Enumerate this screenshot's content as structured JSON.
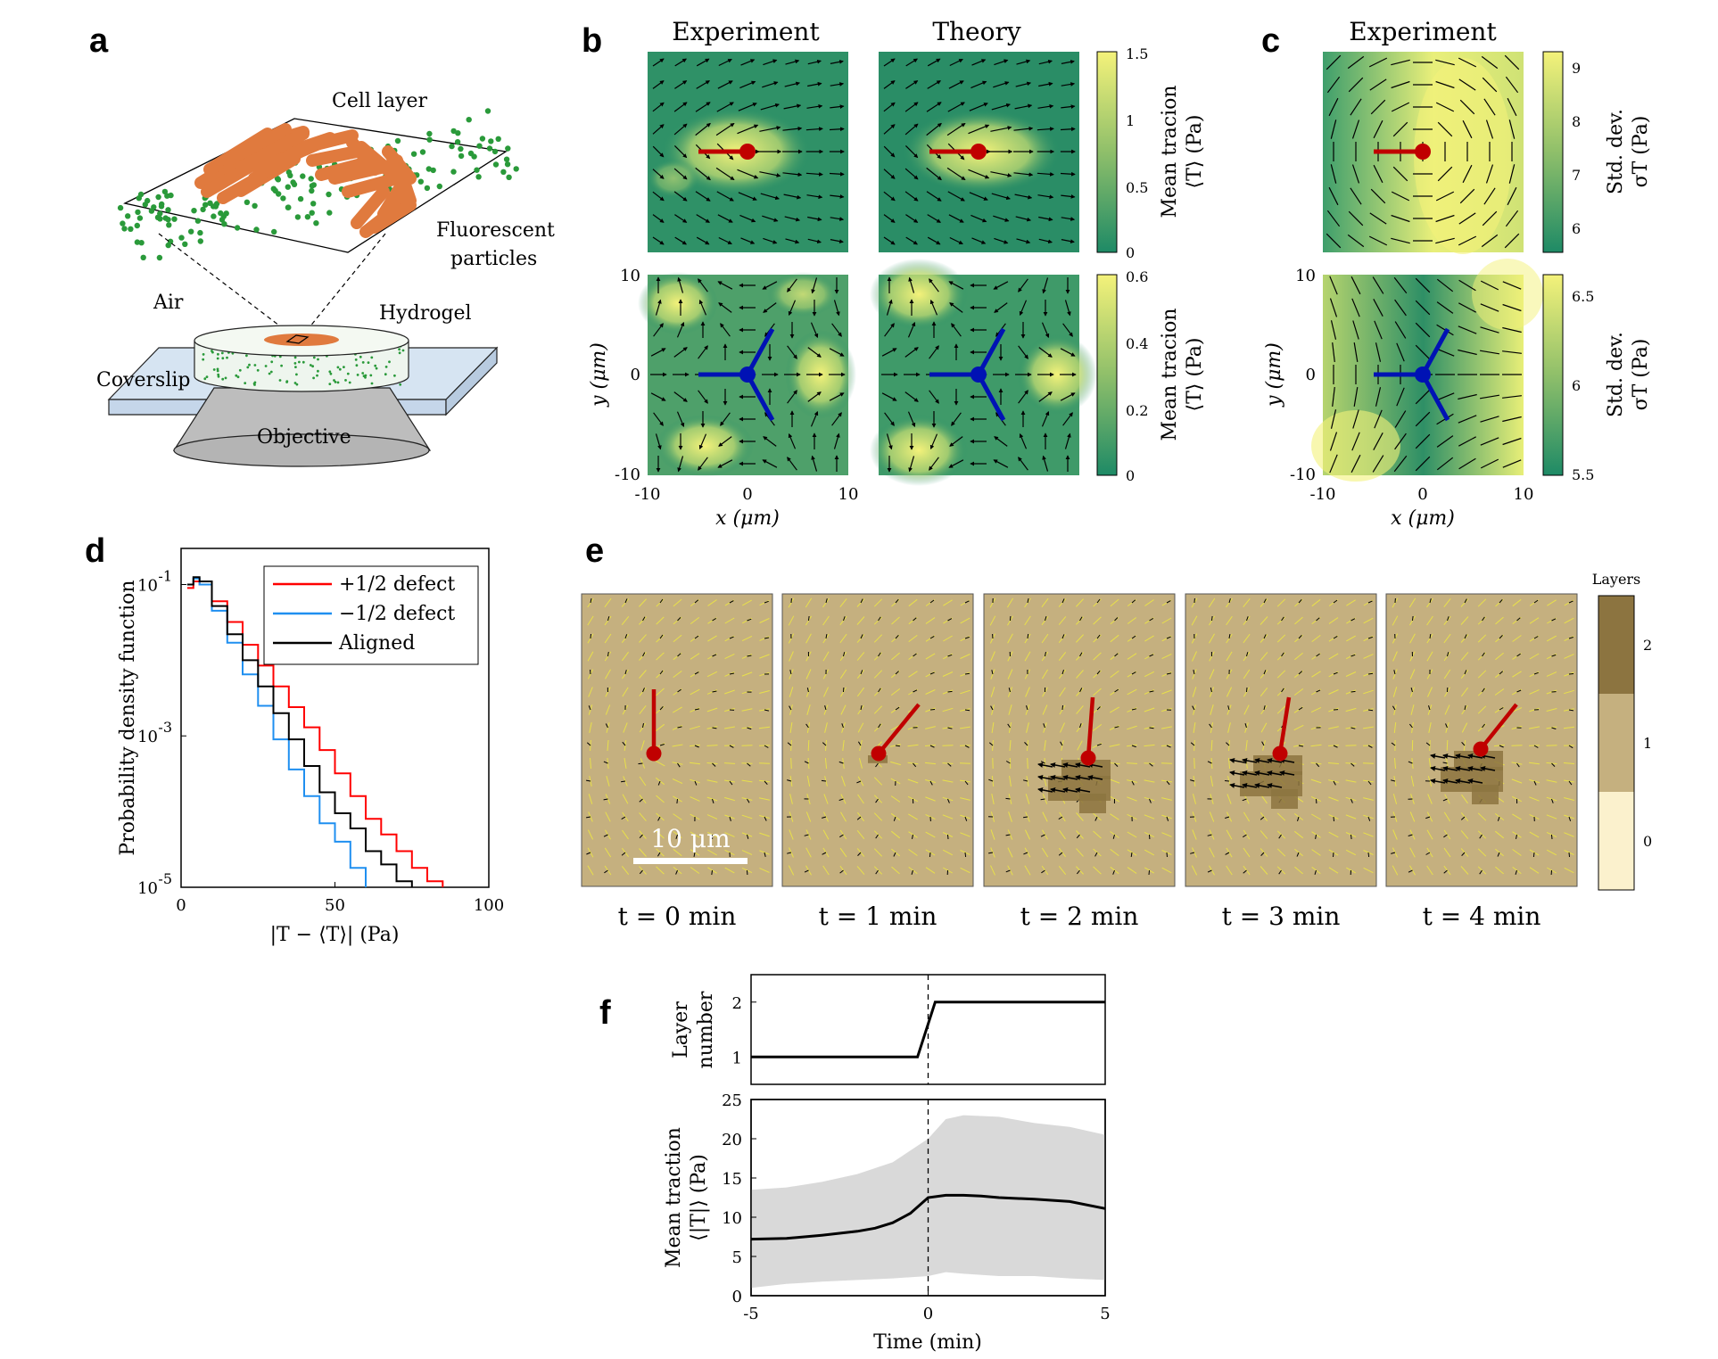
{
  "colors": {
    "map_low": "#1e8a66",
    "map_high": "#f4f27a",
    "defect_plus": "#c00000",
    "defect_minus": "#0012b4",
    "brown_bg": "#c5b07f",
    "layer2": "#8c7440",
    "layer1": "#c5b07f",
    "layer0": "#fbf1cd",
    "pdf_plus": "#ff0000",
    "pdf_minus": "#1f8ff0",
    "pdf_aligned": "#000000",
    "cell_orange": "#e07a3e",
    "particle_green": "#2a9a3a",
    "band_gray": "#d9d9d9"
  },
  "panel_labels": {
    "a": "a",
    "b": "b",
    "c": "c",
    "d": "d",
    "e": "e",
    "f": "f"
  },
  "panel_a": {
    "cell_layer": "Cell layer",
    "fluorescent_1": "Fluorescent",
    "fluorescent_2": "particles",
    "air": "Air",
    "hydrogel": "Hydrogel",
    "coverslip": "Coverslip",
    "objective": "Objective",
    "icons": [
      "cell-icon",
      "particle-icon",
      "objective-icon"
    ]
  },
  "panel_b": {
    "title_exp": "Experiment",
    "title_theory": "Theory",
    "cbar_top": {
      "ticks": [
        "1.5",
        "1",
        "0.5",
        "0"
      ],
      "values": [
        1.5,
        1,
        0.5,
        0
      ],
      "label_1": "Mean tracion",
      "label_2": "⟨T⟩ (Pa)"
    },
    "cbar_bot": {
      "ticks": [
        "0.6",
        "0.4",
        "0.2",
        "0"
      ],
      "values": [
        0.6,
        0.4,
        0.2,
        0
      ],
      "label_1": "Mean tracion",
      "label_2": "⟨T⟩ (Pa)"
    },
    "yticks": [
      "10",
      "0",
      "-10"
    ],
    "xticks": [
      "-10",
      "0",
      "10"
    ],
    "ylabel": "y (μm)",
    "xlabel": "x (μm)"
  },
  "panel_c": {
    "title": "Experiment",
    "cbar_top": {
      "ticks": [
        "9",
        "8",
        "7",
        "6"
      ],
      "values": [
        9,
        8,
        7,
        6
      ],
      "label_1": "Std. dev.",
      "label_2": "σT (Pa)"
    },
    "cbar_bot": {
      "ticks": [
        "6.5",
        "6",
        "5.5"
      ],
      "values": [
        6.5,
        6,
        5.5
      ],
      "label_1": "Std. dev.",
      "label_2": "σT (Pa)"
    },
    "yticks": [
      "10",
      "0",
      "-10"
    ],
    "xticks": [
      "-10",
      "0",
      "10"
    ],
    "ylabel": "y (μm)",
    "xlabel": "x (μm)"
  },
  "panel_e": {
    "frames": [
      "t = 0 min",
      "t = 1 min",
      "t = 2 min",
      "t = 3 min",
      "t = 4 min"
    ],
    "scale_bar": "10 μm",
    "layers_title": "Layers",
    "layer_ticks": [
      "2",
      "1",
      "0"
    ]
  },
  "chart_data": [
    {
      "id": "d",
      "type": "line",
      "scale": "log-y",
      "xlabel": "|T − ⟨T⟩| (Pa)",
      "ylabel": "Probability density function",
      "xlim": [
        0,
        100
      ],
      "ylim": [
        1e-05,
        0.3
      ],
      "xticks": [
        "0",
        "50",
        "100"
      ],
      "yticks": [
        "10-1",
        "10-3",
        "10-5"
      ],
      "legend_position": "top-right",
      "series": [
        {
          "name": "+1/2 defect",
          "x": [
            2,
            4,
            6,
            10,
            15,
            20,
            25,
            30,
            35,
            40,
            45,
            50,
            55,
            60,
            65,
            70,
            75,
            80,
            85
          ],
          "y": [
            0.09,
            0.11,
            0.1,
            0.06,
            0.032,
            0.016,
            0.0085,
            0.0045,
            0.0024,
            0.0013,
            0.00065,
            0.00032,
            0.00016,
            8e-05,
            5e-05,
            3e-05,
            1.8e-05,
            1.2e-05,
            1e-05
          ]
        },
        {
          "name": "−1/2 defect",
          "x": [
            2,
            4,
            6,
            10,
            15,
            20,
            25,
            30,
            35,
            40,
            45,
            50,
            55,
            60
          ],
          "y": [
            0.1,
            0.12,
            0.1,
            0.045,
            0.017,
            0.0065,
            0.0025,
            0.0009,
            0.00036,
            0.00016,
            7e-05,
            4e-05,
            1.8e-05,
            1e-05
          ]
        },
        {
          "name": "Aligned",
          "x": [
            2,
            4,
            6,
            10,
            15,
            20,
            25,
            30,
            35,
            40,
            45,
            50,
            55,
            60,
            65,
            70,
            75
          ],
          "y": [
            0.1,
            0.125,
            0.11,
            0.052,
            0.022,
            0.01,
            0.0045,
            0.002,
            0.0009,
            0.0004,
            0.00018,
            9.5e-05,
            6e-05,
            3e-05,
            2e-05,
            1.2e-05,
            1e-05
          ]
        }
      ]
    },
    {
      "id": "f_top",
      "type": "line",
      "ylabel_1": "Layer",
      "ylabel_2": "number",
      "xlim": [
        -5,
        5
      ],
      "ylim": [
        0.5,
        2.5
      ],
      "yticks": [
        "2",
        "1"
      ],
      "series": [
        {
          "name": "Layer number",
          "x": [
            -5,
            -0.3,
            0.2,
            5
          ],
          "y": [
            1,
            1,
            2,
            2
          ]
        }
      ]
    },
    {
      "id": "f_bottom",
      "type": "area",
      "xlabel": "Time (min)",
      "ylabel_1": "Mean traction",
      "ylabel_2": "⟨|T|⟩ (Pa)",
      "xlim": [
        -5,
        5
      ],
      "ylim": [
        0,
        25
      ],
      "xticks": [
        "-5",
        "0",
        "5"
      ],
      "yticks": [
        "25",
        "20",
        "15",
        "10",
        "5",
        "0"
      ],
      "series": [
        {
          "name": "Mean traction",
          "x": [
            -5,
            -4,
            -3,
            -2,
            -1.5,
            -1,
            -0.5,
            0,
            0.5,
            1,
            1.5,
            2,
            3,
            4,
            5
          ],
          "y": [
            7.2,
            7.3,
            7.7,
            8.2,
            8.6,
            9.3,
            10.5,
            12.5,
            12.8,
            12.8,
            12.7,
            12.5,
            12.3,
            12,
            11.1
          ]
        }
      ],
      "band": {
        "x": [
          -5,
          -4,
          -3,
          -2,
          -1,
          0,
          0.5,
          1,
          2,
          3,
          4,
          5
        ],
        "upper": [
          13.5,
          13.8,
          14.5,
          15.5,
          17,
          20,
          22.5,
          23,
          22.8,
          22,
          21.5,
          20.5
        ],
        "lower": [
          1,
          1.5,
          1.8,
          2,
          2.2,
          2.5,
          3,
          2.8,
          2.5,
          2.5,
          2.2,
          2
        ]
      }
    }
  ]
}
